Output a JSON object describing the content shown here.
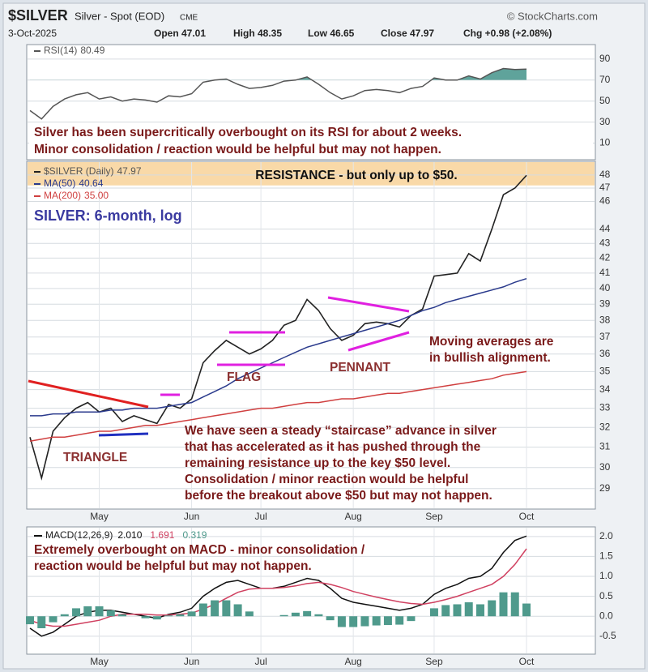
{
  "header": {
    "symbol": "$SILVER",
    "name": "Silver - Spot (EOD)",
    "exchange": "CME",
    "credit": "© StockCharts.com",
    "date": "3-Oct-2025",
    "open": "Open 47.01",
    "high": "High 48.35",
    "low": "Low 46.65",
    "close": "Close 47.97",
    "change": "Chg +0.98 (+2.08%)"
  },
  "chart_data": [
    {
      "type": "line",
      "ylim": [
        -5,
        103
      ],
      "yticks": [
        10,
        30,
        50,
        70,
        90
      ],
      "grid": true,
      "fill_above": 70,
      "series": [
        {
          "name": "RSI(14)",
          "legend_value": "80.49",
          "color": "#555555",
          "fill": "#5fa39b",
          "values": [
            41,
            33,
            45,
            52,
            56,
            58,
            52,
            54,
            50,
            52,
            51,
            49,
            55,
            54,
            57,
            68,
            70,
            71,
            66,
            62,
            63,
            65,
            69,
            70,
            73,
            66,
            58,
            52,
            55,
            60,
            61,
            60,
            58,
            62,
            64,
            72,
            70,
            70,
            74,
            71,
            77,
            81,
            80,
            80.49
          ]
        }
      ],
      "annotations": [
        {
          "lines": [
            "Silver has been supercritically overbought on its RSI for about 2 weeks.",
            "Minor consolidation / reaction would be helpful but may not happen."
          ]
        }
      ]
    },
    {
      "type": "line",
      "log": true,
      "ylim": [
        28.1,
        49
      ],
      "yticks": [
        29,
        30,
        31,
        32,
        33,
        34,
        35,
        36,
        37,
        38,
        39,
        40,
        41,
        42,
        43,
        44,
        46,
        47,
        48
      ],
      "grid": true,
      "band": [
        47.2,
        49
      ],
      "band_color": "#f9d9a8",
      "xticks": [
        {
          "value": 6,
          "label": "May"
        },
        {
          "value": 14,
          "label": "Jun"
        },
        {
          "value": 20,
          "label": "Jul"
        },
        {
          "value": 28,
          "label": "Aug"
        },
        {
          "value": 35,
          "label": "Sep"
        },
        {
          "value": 43,
          "label": "Oct"
        }
      ],
      "series": [
        {
          "name": "$SILVER (Daily)",
          "legend_value": "47.97",
          "color": "#222222",
          "values": [
            31.5,
            29.5,
            31.8,
            32.5,
            33.0,
            33.3,
            32.8,
            33.0,
            32.3,
            32.6,
            32.4,
            32.2,
            33.2,
            33.0,
            33.5,
            35.5,
            36.2,
            36.8,
            36.4,
            36.0,
            36.3,
            36.8,
            37.7,
            38.0,
            39.3,
            38.6,
            37.5,
            36.8,
            37.1,
            37.8,
            37.9,
            37.8,
            37.6,
            38.3,
            38.7,
            40.8,
            40.9,
            41.0,
            42.3,
            41.8,
            44.0,
            46.5,
            47.0,
            47.97
          ]
        },
        {
          "name": "MA(50)",
          "legend_value": "40.64",
          "color": "#2a3a8c",
          "values": [
            32.6,
            32.6,
            32.7,
            32.7,
            32.8,
            32.8,
            32.8,
            32.9,
            32.9,
            33.0,
            33.0,
            33.0,
            33.1,
            33.2,
            33.3,
            33.6,
            33.9,
            34.2,
            34.6,
            34.9,
            35.2,
            35.5,
            35.8,
            36.1,
            36.4,
            36.6,
            36.8,
            37.0,
            37.2,
            37.4,
            37.6,
            37.8,
            38.0,
            38.3,
            38.6,
            38.8,
            39.1,
            39.3,
            39.5,
            39.7,
            39.9,
            40.1,
            40.4,
            40.64
          ]
        },
        {
          "name": "MA(200)",
          "legend_value": "35.00",
          "color": "#d04040",
          "values": [
            31.3,
            31.4,
            31.5,
            31.5,
            31.6,
            31.7,
            31.8,
            31.8,
            31.9,
            32.0,
            32.1,
            32.1,
            32.2,
            32.3,
            32.4,
            32.5,
            32.6,
            32.7,
            32.8,
            32.9,
            33.0,
            33.0,
            33.1,
            33.2,
            33.3,
            33.3,
            33.4,
            33.5,
            33.5,
            33.6,
            33.7,
            33.8,
            33.8,
            33.9,
            34.0,
            34.1,
            34.2,
            34.3,
            34.4,
            34.5,
            34.6,
            34.8,
            34.9,
            35.0
          ]
        }
      ],
      "annotations": [
        {
          "lines": [
            "RESISTANCE - but only up to $50."
          ]
        },
        {
          "lines": [
            "SILVER: 6-month, log"
          ]
        },
        {
          "lines": [
            "Moving averages are",
            "in bullish alignment."
          ]
        },
        {
          "lines": [
            "We have seen a steady “staircase” advance in silver",
            "that has accelerated as it has pushed through the",
            "remaining resistance up to the key  $50 level.",
            "Consolidation / minor reaction would be helpful",
            "before the breakout above $50 but may not happen."
          ]
        },
        {
          "lines": [
            "TRIANGLE"
          ]
        },
        {
          "lines": [
            "FLAG"
          ]
        },
        {
          "lines": [
            "PENNANT"
          ]
        }
      ]
    },
    {
      "type": "line",
      "ylim": [
        -0.93,
        2.22
      ],
      "yticks": [
        {
          "value": -0.5,
          "label": "-0.5"
        },
        {
          "value": 0,
          "label": "0.0"
        },
        0.5,
        {
          "value": 1,
          "label": "1.0"
        },
        1.5,
        {
          "value": 2,
          "label": "2.0"
        }
      ],
      "grid": true,
      "xticks": [
        {
          "value": 6,
          "label": "May"
        },
        {
          "value": 14,
          "label": "Jun"
        },
        {
          "value": 20,
          "label": "Jul"
        },
        {
          "value": 28,
          "label": "Aug"
        },
        {
          "value": 35,
          "label": "Sep"
        },
        {
          "value": 43,
          "label": "Oct"
        }
      ],
      "series": [
        {
          "name": "MACD(12,26,9)",
          "legend_value": "2.010",
          "color": "#111111",
          "values": [
            -0.3,
            -0.5,
            -0.4,
            -0.2,
            0.0,
            0.1,
            0.15,
            0.15,
            0.1,
            0.05,
            0.0,
            -0.05,
            0.05,
            0.1,
            0.2,
            0.5,
            0.7,
            0.85,
            0.9,
            0.8,
            0.7,
            0.7,
            0.75,
            0.85,
            0.95,
            0.9,
            0.7,
            0.45,
            0.35,
            0.3,
            0.25,
            0.2,
            0.15,
            0.2,
            0.3,
            0.55,
            0.7,
            0.8,
            0.95,
            1.0,
            1.2,
            1.6,
            1.9,
            2.01
          ]
        },
        {
          "legend_value": "1.691",
          "color": "#d04060",
          "values": [
            -0.1,
            -0.2,
            -0.25,
            -0.25,
            -0.2,
            -0.15,
            -0.1,
            0.0,
            0.05,
            0.05,
            0.05,
            0.03,
            0.03,
            0.05,
            0.08,
            0.18,
            0.3,
            0.45,
            0.6,
            0.68,
            0.7,
            0.7,
            0.72,
            0.76,
            0.82,
            0.85,
            0.8,
            0.72,
            0.62,
            0.55,
            0.48,
            0.42,
            0.36,
            0.32,
            0.3,
            0.35,
            0.42,
            0.5,
            0.6,
            0.7,
            0.8,
            1.0,
            1.3,
            1.691
          ]
        },
        {
          "legend_value": "0.319",
          "color": "#4f9a8c",
          "type": "bar",
          "values": [
            -0.2,
            -0.3,
            -0.15,
            0.05,
            0.2,
            0.25,
            0.25,
            0.15,
            0.05,
            0.0,
            -0.05,
            -0.08,
            0.02,
            0.05,
            0.12,
            0.32,
            0.4,
            0.4,
            0.3,
            0.12,
            0.0,
            0.0,
            0.03,
            0.09,
            0.13,
            0.05,
            -0.1,
            -0.27,
            -0.27,
            -0.25,
            -0.23,
            -0.22,
            -0.21,
            -0.12,
            0.0,
            0.2,
            0.28,
            0.3,
            0.35,
            0.3,
            0.4,
            0.6,
            0.6,
            0.319
          ]
        }
      ],
      "annotations": [
        {
          "lines": [
            "Extremely overbought on MACD - minor consolidation /",
            "reaction would be helpful but may not happen."
          ]
        }
      ]
    }
  ]
}
